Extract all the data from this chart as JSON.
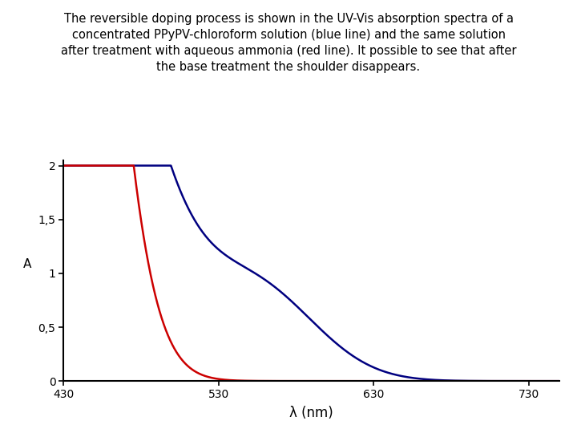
{
  "title_text": "The reversible doping process is shown in the UV-Vis absorption spectra of a\nconcentrated PPyPV-chloroform solution (blue line) and the same solution\nafter treatment with aqueous ammonia (red line). It possible to see that after\nthe base treatment the shoulder disappears.",
  "title_fontsize": 10.5,
  "xlabel": "λ (nm)",
  "ylabel": "A",
  "xlabel_fontsize": 12,
  "ylabel_fontsize": 11,
  "xlim": [
    430,
    750
  ],
  "ylim": [
    0,
    2.05
  ],
  "xticks": [
    430,
    530,
    630,
    730
  ],
  "yticks": [
    0,
    0.5,
    1,
    1.5,
    2
  ],
  "ytick_labels": [
    "0",
    "0,5",
    "1",
    "1,5",
    "2"
  ],
  "blue_color": "#000080",
  "red_color": "#cc0000",
  "background_color": "#ffffff",
  "linewidth": 1.8,
  "figsize": [
    7.2,
    5.4
  ],
  "dpi": 100
}
